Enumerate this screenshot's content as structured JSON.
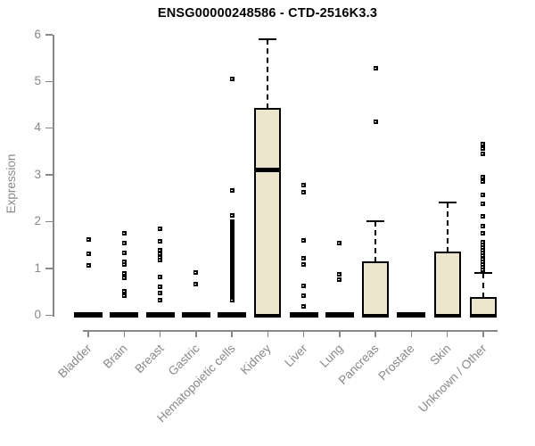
{
  "chart_data": {
    "type": "boxplot",
    "title": "ENSG00000248586 - CTD-2516K3.3",
    "ylabel": "Expression",
    "ylim": [
      0,
      6
    ],
    "yticks": [
      0,
      1,
      2,
      3,
      4,
      5,
      6
    ],
    "grid": false,
    "box_fill_color": "#ece5cc",
    "box_border_color": "#000000",
    "axis_color": "#888888",
    "tick_text_color": "#888888",
    "title_color": "#000000",
    "categories": [
      "Bladder",
      "Brain",
      "Breast",
      "Gastric",
      "Hematopoietic cells",
      "Kidney",
      "Liver",
      "Lung",
      "Pancreas",
      "Prostate",
      "Skin",
      "Unknown / Other"
    ],
    "series": [
      {
        "category": "Bladder",
        "q1": 0,
        "median": 0,
        "q3": 0,
        "whisker_low": 0,
        "whisker_high": 0,
        "outliers": [
          1.62,
          1.3,
          1.05
        ]
      },
      {
        "category": "Brain",
        "q1": 0,
        "median": 0,
        "q3": 0,
        "whisker_low": 0,
        "whisker_high": 0,
        "outliers": [
          1.74,
          1.53,
          1.32,
          1.14,
          1.08,
          0.88,
          0.79,
          0.5,
          0.41
        ]
      },
      {
        "category": "Breast",
        "q1": 0,
        "median": 0,
        "q3": 0,
        "whisker_low": 0,
        "whisker_high": 0,
        "outliers": [
          1.84,
          1.57,
          1.38,
          1.3,
          1.24,
          1.18,
          0.81,
          0.6,
          0.46,
          0.32
        ]
      },
      {
        "category": "Gastric",
        "q1": 0,
        "median": 0,
        "q3": 0,
        "whisker_low": 0,
        "whisker_high": 0,
        "outliers": [
          0.9,
          0.65
        ]
      },
      {
        "category": "Hematopoietic cells",
        "q1": 0,
        "median": 0,
        "q3": 0,
        "whisker_low": 0,
        "whisker_high": 0,
        "outliers": [
          5.05,
          2.66,
          2.12,
          2.0,
          1.96,
          1.93,
          1.9,
          1.86,
          1.83,
          1.79,
          1.76,
          1.72,
          1.69,
          1.65,
          1.62,
          1.58,
          1.55,
          1.51,
          1.48,
          1.44,
          1.41,
          1.37,
          1.34,
          1.3,
          1.27,
          1.23,
          1.2,
          1.16,
          1.13,
          1.09,
          1.06,
          1.02,
          0.99,
          0.95,
          0.92,
          0.88,
          0.85,
          0.81,
          0.78,
          0.74,
          0.71,
          0.67,
          0.64,
          0.6,
          0.57,
          0.53,
          0.5,
          0.46,
          0.43,
          0.39,
          0.36,
          0.32
        ]
      },
      {
        "category": "Kidney",
        "q1": 0,
        "median": 3.1,
        "q3": 4.4,
        "whisker_low": 0,
        "whisker_high": 5.9,
        "outliers": []
      },
      {
        "category": "Liver",
        "q1": 0,
        "median": 0,
        "q3": 0,
        "whisker_low": 0,
        "whisker_high": 0,
        "outliers": [
          2.78,
          2.62,
          1.59,
          1.22,
          1.08,
          0.62,
          0.41,
          0.19
        ]
      },
      {
        "category": "Lung",
        "q1": 0,
        "median": 0,
        "q3": 0,
        "whisker_low": 0,
        "whisker_high": 0,
        "outliers": [
          1.54,
          0.86,
          0.76
        ]
      },
      {
        "category": "Pancreas",
        "q1": 0,
        "median": 0,
        "q3": 1.13,
        "whisker_low": 0,
        "whisker_high": 2.0,
        "outliers": [
          5.27,
          4.13
        ]
      },
      {
        "category": "Prostate",
        "q1": 0,
        "median": 0,
        "q3": 0,
        "whisker_low": 0,
        "whisker_high": 0,
        "outliers": []
      },
      {
        "category": "Skin",
        "q1": 0,
        "median": 0,
        "q3": 1.33,
        "whisker_low": 0,
        "whisker_high": 2.4,
        "outliers": []
      },
      {
        "category": "Unknown / Other",
        "q1": 0,
        "median": 0,
        "q3": 0.36,
        "whisker_low": 0,
        "whisker_high": 0.9,
        "outliers": [
          3.66,
          3.55,
          3.44,
          2.94,
          2.85,
          2.56,
          2.38,
          2.1,
          1.9,
          1.75,
          1.56,
          1.5,
          1.44,
          1.38,
          1.32,
          1.26,
          1.2,
          1.14,
          1.08,
          1.02,
          0.97
        ]
      }
    ]
  }
}
